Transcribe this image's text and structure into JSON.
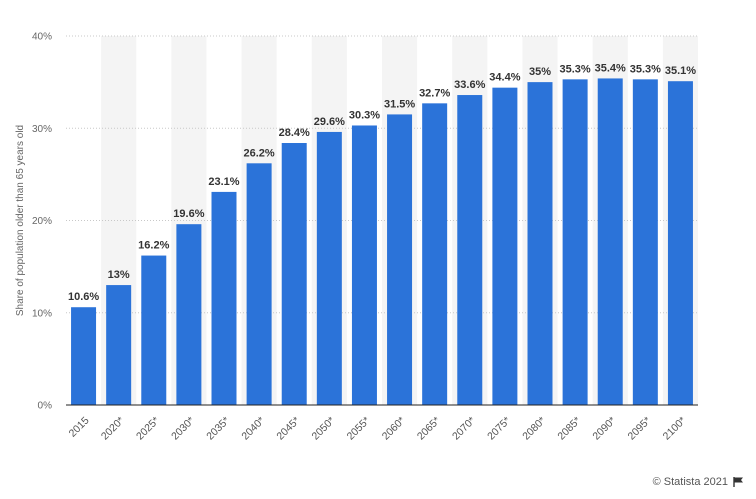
{
  "chart_data": {
    "type": "bar",
    "title": "",
    "xlabel": "",
    "ylabel": "Share of population older than 65 years old",
    "ylim": [
      0,
      40
    ],
    "yticks": [
      0,
      10,
      20,
      30,
      40
    ],
    "ytick_labels": [
      "0%",
      "10%",
      "20%",
      "30%",
      "40%"
    ],
    "categories": [
      "2015",
      "2020*",
      "2025*",
      "2030*",
      "2035*",
      "2040*",
      "2045*",
      "2050*",
      "2055*",
      "2060*",
      "2065*",
      "2070*",
      "2075*",
      "2080*",
      "2085*",
      "2090*",
      "2095*",
      "2100*"
    ],
    "values": [
      10.6,
      13,
      16.2,
      19.6,
      23.1,
      26.2,
      28.4,
      29.6,
      30.3,
      31.5,
      32.7,
      33.6,
      34.4,
      35,
      35.3,
      35.4,
      35.3,
      35.1
    ],
    "data_labels": [
      "10.6%",
      "13%",
      "16.2%",
      "19.6%",
      "23.1%",
      "26.2%",
      "28.4%",
      "29.6%",
      "30.3%",
      "31.5%",
      "32.7%",
      "33.6%",
      "34.4%",
      "35%",
      "35.3%",
      "35.4%",
      "35.3%",
      "35.1%"
    ],
    "grid": true,
    "colors": {
      "bar": "#2b73d9",
      "band": "#f4f4f4",
      "grid": "#c8c8c8",
      "axis": "#222222"
    }
  },
  "footer": {
    "credit": "© Statista 2021",
    "flag_icon": "flag-icon"
  }
}
